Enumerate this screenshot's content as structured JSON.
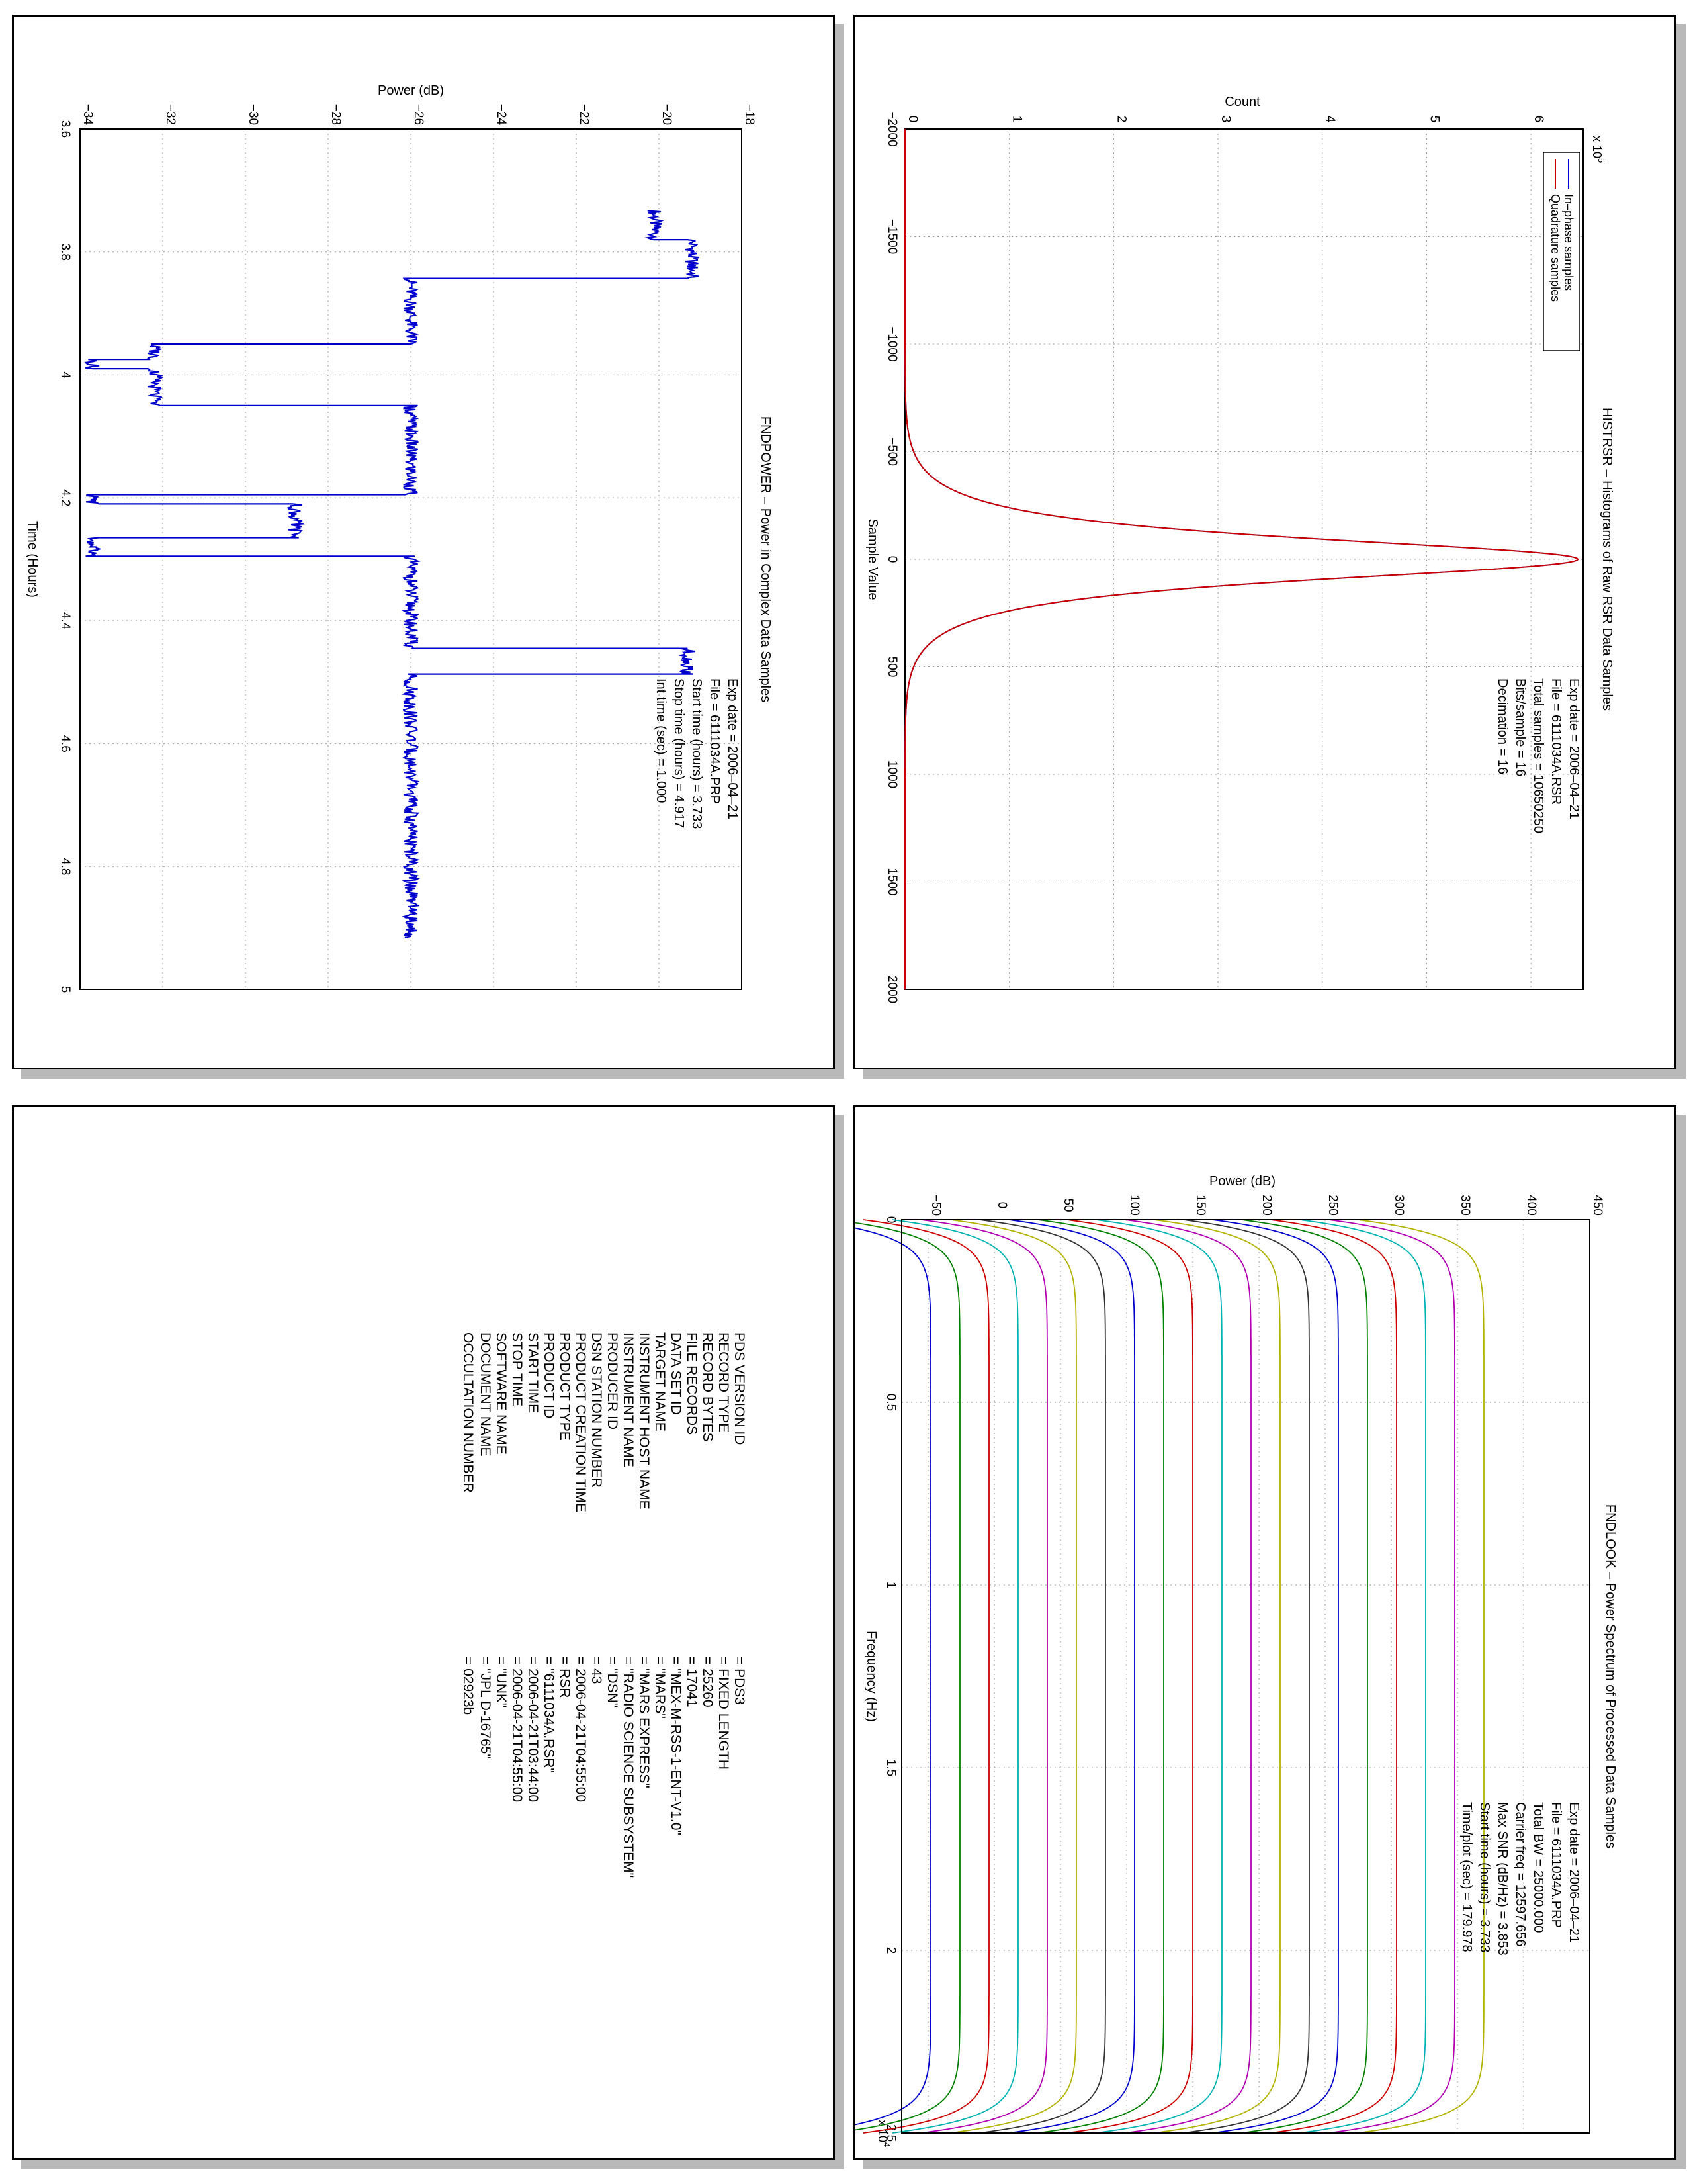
{
  "panels": {
    "power": {
      "title": "FNDPOWER – Power in Complex Data Samples",
      "xlabel": "Time (Hours)",
      "ylabel": "Power (dB)",
      "info": [
        "Exp date = 2006–04–21",
        "File = 6111034A.PRP",
        "Start time (hours) = 3.733",
        "Stop time (hours) = 4.917",
        "Int time (sec) =    1.000"
      ]
    },
    "histo": {
      "title": "HISTRSR – Histograms of Raw RSR Data Samples",
      "xlabel": "Sample Value",
      "ylabel": "Count",
      "exponent_label": "x 10",
      "exponent_power": "5",
      "legend": [
        "In–phase samples",
        "Quadrature samples"
      ],
      "info": [
        "Exp date = 2006–04–21",
        "File = 6111034A.RSR",
        "Total samples = 10650250",
        "Bits/sample  =      16",
        "Decimation   =      16"
      ]
    },
    "look": {
      "title": "FNDLOOK – Power Spectrum of Processed Data Samples",
      "xlabel": "Frequency (Hz)",
      "ylabel": "Power (dB)",
      "exponent_label": "x 10",
      "exponent_power": "4",
      "info": [
        "Exp date = 2006–04–21",
        "File = 6111034A.PRP",
        "Total BW =     25000.000",
        "Carrier freq =  12597.656",
        "Max SNR (dB/Hz) =     3.853",
        "Start time (hours) =   3.733",
        "Time/plot (sec) =   179.978"
      ]
    }
  },
  "pds_label": {
    "fields": [
      {
        "key": "PDS VERSION ID",
        "value": "= PDS3"
      },
      {
        "key": "RECORD TYPE",
        "value": "= FIXED LENGTH"
      },
      {
        "key": "RECORD BYTES",
        "value": "= 25260"
      },
      {
        "key": "FILE RECORDS",
        "value": "= 17041"
      },
      {
        "key": "DATA SET ID",
        "value": "= \"MEX-M-RSS-1-ENT-V1.0\""
      },
      {
        "key": "TARGET NAME",
        "value": "= \"MARS\""
      },
      {
        "key": "INSTRUMENT HOST NAME",
        "value": "= \"MARS EXPRESS\""
      },
      {
        "key": "INSTRUMENT NAME",
        "value": "= \"RADIO SCIENCE SUBSYSTEM\""
      },
      {
        "key": "PRODUCER ID",
        "value": "= \"DSN\""
      },
      {
        "key": "DSN STATION NUMBER",
        "value": "= 43"
      },
      {
        "key": "PRODUCT CREATION TIME",
        "value": "= 2006-04-21T04:55:00"
      },
      {
        "key": "PRODUCT TYPE",
        "value": "= RSR"
      },
      {
        "key": "PRODUCT ID",
        "value": "= \"6111034A.RSR\""
      },
      {
        "key": "START TIME",
        "value": "= 2006-04-21T03:44:00"
      },
      {
        "key": "STOP TIME",
        "value": "= 2006-04-21T04:55:00"
      },
      {
        "key": "SOFTWARE NAME",
        "value": "= \"UNK\""
      },
      {
        "key": "DOCUMENT NAME",
        "value": "= \"JPL D-16765\""
      }
    ],
    "occultation": {
      "key": "OCCULTATION NUMBER",
      "value": "= 02923b"
    }
  },
  "chart_data": [
    {
      "type": "line",
      "title": "FNDPOWER – Power in Complex Data Samples",
      "xlabel": "Time (Hours)",
      "ylabel": "Power (dB)",
      "xlim": [
        3.6,
        5.0
      ],
      "ylim": [
        -34,
        -18
      ],
      "xticks": [
        "3.6",
        "3.8",
        "4",
        "4.2",
        "4.4",
        "4.6",
        "4.8",
        "5"
      ],
      "yticks": [
        "-34",
        "-32",
        "-30",
        "-28",
        "-26",
        "-24",
        "-22",
        "-20",
        "-18"
      ],
      "grid": true,
      "color": "#0000cc",
      "steps": [
        {
          "t0": 3.733,
          "t1": 3.78,
          "power": -20.1
        },
        {
          "t0": 3.78,
          "t1": 3.843,
          "power": -19.2
        },
        {
          "t0": 3.843,
          "t1": 3.95,
          "power": -26.0
        },
        {
          "t0": 3.95,
          "t1": 3.975,
          "power": -32.2
        },
        {
          "t0": 3.975,
          "t1": 3.99,
          "power": -33.7
        },
        {
          "t0": 3.99,
          "t1": 4.05,
          "power": -32.2
        },
        {
          "t0": 4.05,
          "t1": 4.195,
          "power": -26.0
        },
        {
          "t0": 4.195,
          "t1": 4.21,
          "power": -33.7
        },
        {
          "t0": 4.21,
          "t1": 4.265,
          "power": -28.8
        },
        {
          "t0": 4.265,
          "t1": 4.28,
          "power": -33.7
        },
        {
          "t0": 4.28,
          "t1": 4.295,
          "power": -33.7
        },
        {
          "t0": 4.295,
          "t1": 4.445,
          "power": -26.0
        },
        {
          "t0": 4.445,
          "t1": 4.487,
          "power": -19.3
        },
        {
          "t0": 4.487,
          "t1": 4.917,
          "power": -26.0
        }
      ]
    },
    {
      "type": "line",
      "title": "HISTRSR – Histograms of Raw RSR Data Samples",
      "xlabel": "Sample Value",
      "ylabel": "Count",
      "y_multiplier": "x 10^5",
      "xlim": [
        -2000,
        2000
      ],
      "ylim": [
        0,
        6.5
      ],
      "xticks": [
        "-2000",
        "-1500",
        "-1000",
        "-500",
        "0",
        "500",
        "1000",
        "1500",
        "2000"
      ],
      "yticks": [
        "0",
        "1",
        "2",
        "3",
        "4",
        "5",
        "6"
      ],
      "grid": true,
      "legend": "top-right",
      "series": [
        {
          "name": "In–phase samples",
          "color": "#0000cc",
          "peak": 6.45,
          "center": 0,
          "sigma": 95
        },
        {
          "name": "Quadrature samples",
          "color": "#cc0000",
          "peak": 6.45,
          "center": 0,
          "sigma": 95
        }
      ]
    },
    {
      "type": "line",
      "title": "FNDLOOK – Power Spectrum of Processed Data Samples",
      "xlabel": "Frequency (Hz)",
      "ylabel": "Power (dB)",
      "x_multiplier": "x 10^4",
      "xlim": [
        0,
        2.5
      ],
      "ylim": [
        -70,
        450
      ],
      "xticks": [
        "0",
        "0.5",
        "1",
        "1.5",
        "2",
        "2.5"
      ],
      "yticks": [
        "-50",
        "0",
        "50",
        "100",
        "150",
        "200",
        "250",
        "300",
        "350",
        "400",
        "450"
      ],
      "grid": true,
      "curve_count": 20,
      "first_plateau": -48,
      "plateau_spacing": 22,
      "colors": [
        "#0000cc",
        "#008000",
        "#cc0000",
        "#00b2b2",
        "#b200b2",
        "#b2b200",
        "#333333"
      ]
    }
  ]
}
